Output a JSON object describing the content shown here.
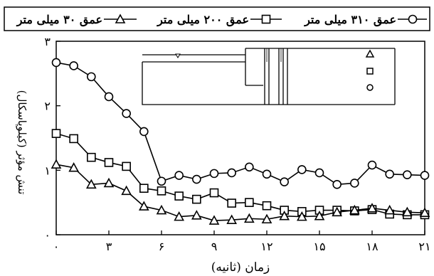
{
  "chart_data": {
    "type": "line",
    "xlabel": "زمان (ثانیه)",
    "ylabel": "تنش مؤثر (کیلوپاسکال)",
    "xlim": [
      0,
      21
    ],
    "ylim": [
      0,
      3
    ],
    "xticks": [
      0,
      3,
      6,
      9,
      12,
      15,
      18,
      21
    ],
    "xtick_labels": [
      "۰",
      "۳",
      "۶",
      "۹",
      "۱۲",
      "۱۵",
      "۱۸",
      "۲۱"
    ],
    "yticks": [
      0,
      1,
      2,
      3
    ],
    "ytick_labels": [
      "۰",
      "۱",
      "۲",
      "۳"
    ],
    "legend_position": "top",
    "series": [
      {
        "name": "عمق ۳۱۰ میلی متر",
        "marker": "circle",
        "x": [
          0,
          1,
          2,
          3,
          4,
          5,
          6,
          7,
          8,
          9,
          10,
          11,
          12,
          13,
          14,
          15,
          16,
          17,
          18,
          19,
          20,
          21
        ],
        "y": [
          2.67,
          2.62,
          2.45,
          2.14,
          1.88,
          1.6,
          0.83,
          0.92,
          0.86,
          0.95,
          0.96,
          1.05,
          0.94,
          0.82,
          1.01,
          0.96,
          0.78,
          0.8,
          1.08,
          0.94,
          0.93,
          0.92
        ]
      },
      {
        "name": "عمق ۲۰۰ میلی متر",
        "marker": "square",
        "x": [
          0,
          1,
          2,
          3,
          4,
          5,
          6,
          7,
          8,
          9,
          10,
          11,
          12,
          13,
          14,
          15,
          16,
          17,
          18,
          19,
          20,
          21
        ],
        "y": [
          1.57,
          1.49,
          1.2,
          1.12,
          1.06,
          0.72,
          0.68,
          0.6,
          0.55,
          0.65,
          0.49,
          0.5,
          0.45,
          0.38,
          0.36,
          0.38,
          0.38,
          0.37,
          0.39,
          0.32,
          0.31,
          0.31
        ]
      },
      {
        "name": "عمق ۳۰ میلی متر",
        "marker": "triangle",
        "x": [
          0,
          1,
          2,
          3,
          4,
          5,
          6,
          7,
          8,
          9,
          10,
          11,
          12,
          13,
          14,
          15,
          16,
          17,
          18,
          19,
          20,
          21
        ],
        "y": [
          1.09,
          1.04,
          0.78,
          0.8,
          0.68,
          0.44,
          0.38,
          0.28,
          0.3,
          0.22,
          0.23,
          0.25,
          0.24,
          0.29,
          0.28,
          0.29,
          0.35,
          0.38,
          0.41,
          0.38,
          0.35,
          0.34
        ]
      }
    ],
    "colors": {
      "line": "#000000",
      "background": "#ffffff"
    }
  }
}
